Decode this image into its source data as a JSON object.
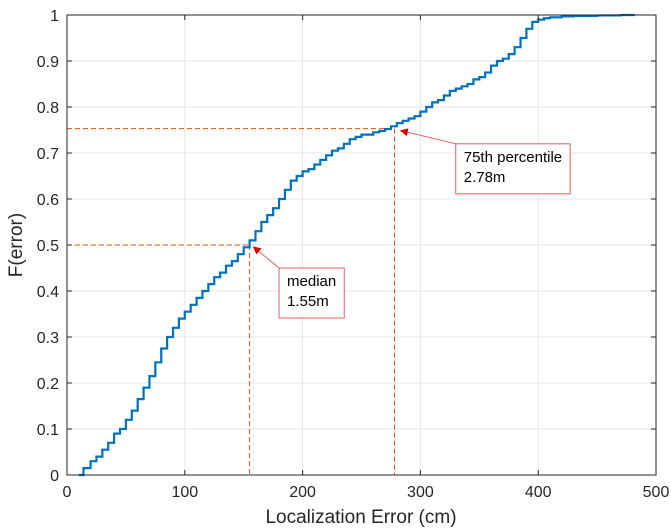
{
  "chart_data": {
    "type": "line",
    "title": "",
    "xlabel": "Localization Error (cm)",
    "ylabel": "F(error)",
    "xlim": [
      0,
      500
    ],
    "ylim": [
      0,
      1
    ],
    "x_ticks": [
      0,
      100,
      200,
      300,
      400,
      500
    ],
    "y_ticks": [
      0,
      0.1,
      0.2,
      0.3,
      0.4,
      0.5,
      0.6,
      0.7,
      0.8,
      0.9,
      1
    ],
    "x_tick_labels": [
      "0",
      "100",
      "200",
      "300",
      "400",
      "500"
    ],
    "y_tick_labels": [
      "0",
      "0.1",
      "0.2",
      "0.3",
      "0.4",
      "0.5",
      "0.6",
      "0.7",
      "0.8",
      "0.9",
      "1"
    ],
    "grid": true,
    "line_style": "step",
    "series": [
      {
        "color": "#0072BD",
        "x": [
          10,
          14,
          20,
          25,
          30,
          35,
          40,
          45,
          50,
          55,
          60,
          65,
          70,
          75,
          80,
          85,
          90,
          95,
          100,
          105,
          110,
          115,
          120,
          125,
          130,
          135,
          140,
          145,
          150,
          155,
          160,
          165,
          170,
          175,
          180,
          185,
          190,
          195,
          200,
          205,
          210,
          215,
          220,
          225,
          230,
          235,
          240,
          245,
          250,
          255,
          260,
          265,
          270,
          275,
          280,
          285,
          290,
          295,
          300,
          305,
          310,
          315,
          320,
          325,
          330,
          335,
          340,
          345,
          350,
          355,
          360,
          365,
          370,
          375,
          380,
          385,
          390,
          395,
          400,
          405,
          410,
          420,
          430,
          450,
          470,
          482
        ],
        "y": [
          0.0,
          0.015,
          0.03,
          0.04,
          0.055,
          0.07,
          0.09,
          0.1,
          0.12,
          0.14,
          0.165,
          0.19,
          0.215,
          0.245,
          0.275,
          0.3,
          0.32,
          0.34,
          0.355,
          0.37,
          0.385,
          0.4,
          0.415,
          0.43,
          0.44,
          0.455,
          0.465,
          0.48,
          0.495,
          0.51,
          0.53,
          0.55,
          0.565,
          0.58,
          0.6,
          0.62,
          0.64,
          0.65,
          0.66,
          0.665,
          0.675,
          0.685,
          0.695,
          0.705,
          0.71,
          0.72,
          0.73,
          0.735,
          0.74,
          0.74,
          0.745,
          0.748,
          0.752,
          0.758,
          0.765,
          0.77,
          0.775,
          0.78,
          0.79,
          0.8,
          0.81,
          0.815,
          0.825,
          0.835,
          0.84,
          0.845,
          0.85,
          0.86,
          0.865,
          0.875,
          0.89,
          0.9,
          0.905,
          0.915,
          0.93,
          0.95,
          0.97,
          0.985,
          0.99,
          0.993,
          0.995,
          0.997,
          0.998,
          0.999,
          1.0,
          1.0
        ]
      }
    ],
    "reference_lines": [
      {
        "x": 155,
        "y": 0.5,
        "color": "#D95319"
      },
      {
        "x": 278,
        "y": 0.753,
        "color": "#D95319"
      }
    ],
    "annotations": [
      {
        "lines": [
          "median",
          "1.55m"
        ],
        "target_x": 155,
        "target_y": 0.5,
        "box_x_anchor": 180,
        "box_y_anchor": 0.45
      },
      {
        "lines": [
          "75th percentile",
          "2.78m"
        ],
        "target_x": 280,
        "target_y": 0.753,
        "box_x_anchor": 330,
        "box_y_anchor": 0.72
      }
    ]
  }
}
